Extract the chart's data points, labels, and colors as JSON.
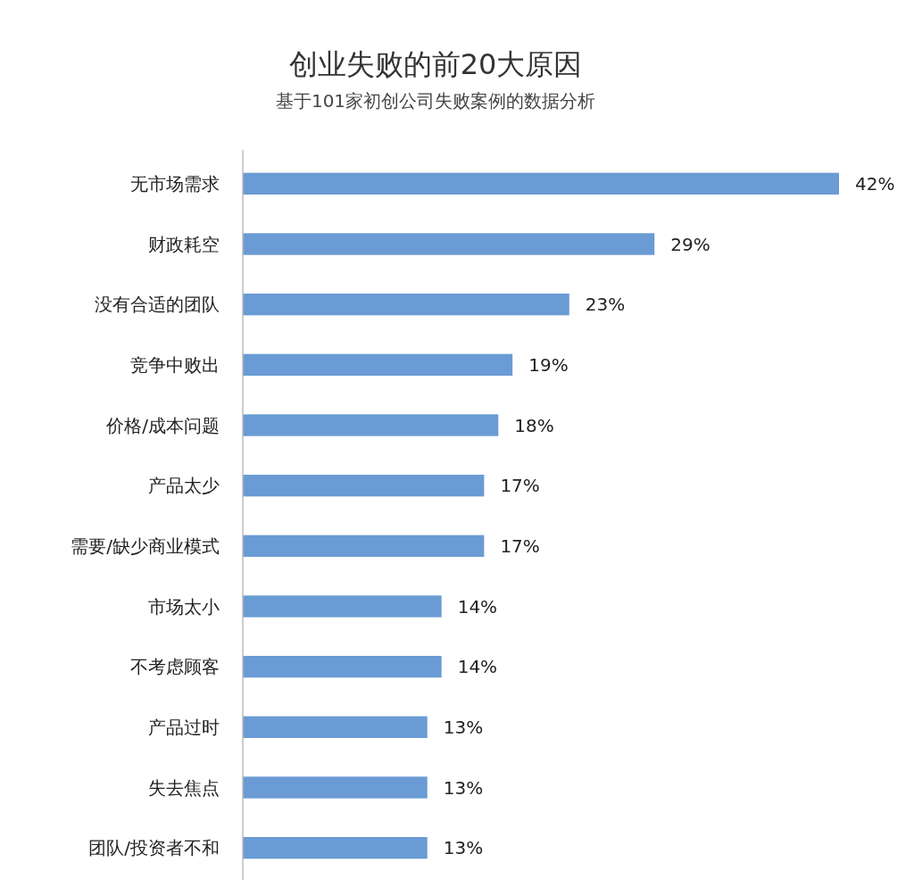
{
  "chart_data": {
    "type": "bar",
    "orientation": "horizontal",
    "title": "创业失败的前20大原因",
    "subtitle": "基于101家初创公司失败案例的数据分析",
    "categories": [
      "无市场需求",
      "财政耗空",
      "没有合适的团队",
      "竞争中败出",
      "价格/成本问题",
      "产品太少",
      "需要/缺少商业模式",
      "市场太小",
      "不考虑顾客",
      "产品过时",
      "失去焦点",
      "团队/投资者不和"
    ],
    "values": [
      42,
      29,
      23,
      19,
      18,
      17,
      17,
      14,
      14,
      13,
      13,
      13
    ],
    "value_labels": [
      "42%",
      "29%",
      "23%",
      "19%",
      "18%",
      "17%",
      "17%",
      "14%",
      "14%",
      "13%",
      "13%",
      "13%"
    ],
    "color": "#6a9bd4"
  }
}
